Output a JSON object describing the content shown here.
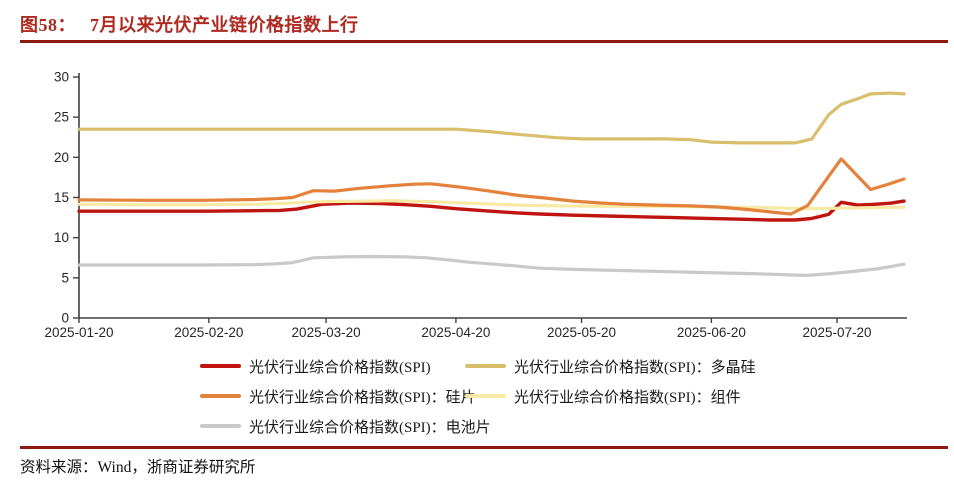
{
  "header": {
    "figure_label": "图58：",
    "title": "7月以来光伏产业链价格指数上行"
  },
  "source": {
    "text": "资料来源：Wind，浙商证券研究所"
  },
  "legend": {
    "items": [
      {
        "label": "光伏行业综合价格指数(SPI)",
        "key": "spi"
      },
      {
        "label": "光伏行业综合价格指数(SPI)：多晶硅",
        "key": "poly"
      },
      {
        "label": "光伏行业综合价格指数(SPI)：硅片",
        "key": "wafer"
      },
      {
        "label": "光伏行业综合价格指数(SPI)：组件",
        "key": "module"
      },
      {
        "label": "光伏行业综合价格指数(SPI)：电池片",
        "key": "cell"
      }
    ]
  },
  "colors": {
    "title_red": "#AE2A20",
    "rule_maroon": "#8C1A10",
    "axis": "#404040"
  },
  "chart_data": {
    "type": "line",
    "title": "",
    "xlabel": "",
    "ylabel": "",
    "grid": false,
    "legend_position": "bottom",
    "x_unit": "days since 2025-01-20",
    "x_domain": [
      0,
      197
    ],
    "ylim": [
      0,
      30
    ],
    "yticks": [
      0,
      5,
      10,
      15,
      20,
      25,
      30
    ],
    "axis_color": "#404040",
    "xticks": [
      {
        "day": 0,
        "label": "2025-01-20"
      },
      {
        "day": 31,
        "label": "2025-02-20"
      },
      {
        "day": 59,
        "label": "2025-03-20"
      },
      {
        "day": 90,
        "label": "2025-04-20"
      },
      {
        "day": 120,
        "label": "2025-05-20"
      },
      {
        "day": 151,
        "label": "2025-06-20"
      },
      {
        "day": 181,
        "label": "2025-07-20"
      }
    ],
    "series": [
      {
        "key": "cell",
        "name": "光伏行业综合价格指数(SPI)：电池片",
        "color": "#C9C9C9",
        "width": 3.2,
        "points": [
          [
            0,
            6.6
          ],
          [
            15,
            6.6
          ],
          [
            30,
            6.6
          ],
          [
            42,
            6.65
          ],
          [
            47,
            6.75
          ],
          [
            51,
            6.9
          ],
          [
            56,
            7.5
          ],
          [
            63,
            7.6
          ],
          [
            70,
            7.65
          ],
          [
            78,
            7.6
          ],
          [
            83,
            7.5
          ],
          [
            88,
            7.25
          ],
          [
            93,
            6.95
          ],
          [
            98,
            6.75
          ],
          [
            104,
            6.5
          ],
          [
            110,
            6.2
          ],
          [
            118,
            6.05
          ],
          [
            126,
            5.95
          ],
          [
            134,
            5.85
          ],
          [
            142,
            5.75
          ],
          [
            150,
            5.65
          ],
          [
            158,
            5.55
          ],
          [
            165,
            5.45
          ],
          [
            170,
            5.35
          ],
          [
            174,
            5.3
          ],
          [
            179,
            5.5
          ],
          [
            185,
            5.8
          ],
          [
            191,
            6.15
          ],
          [
            197,
            6.7
          ]
        ]
      },
      {
        "key": "poly",
        "name": "光伏行业综合价格指数(SPI)：多晶硅",
        "color": "#D9BF6C",
        "width": 3.2,
        "points": [
          [
            0,
            23.5
          ],
          [
            20,
            23.5
          ],
          [
            45,
            23.5
          ],
          [
            70,
            23.5
          ],
          [
            90,
            23.5
          ],
          [
            98,
            23.2
          ],
          [
            106,
            22.8
          ],
          [
            114,
            22.45
          ],
          [
            120,
            22.3
          ],
          [
            130,
            22.3
          ],
          [
            140,
            22.3
          ],
          [
            146,
            22.2
          ],
          [
            151,
            21.9
          ],
          [
            158,
            21.8
          ],
          [
            166,
            21.8
          ],
          [
            171,
            21.8
          ],
          [
            175,
            22.3
          ],
          [
            179,
            25.3
          ],
          [
            182,
            26.6
          ],
          [
            186,
            27.3
          ],
          [
            189,
            27.9
          ],
          [
            194,
            28.0
          ],
          [
            197,
            27.9
          ]
        ]
      },
      {
        "key": "spi",
        "name": "光伏行业综合价格指数(SPI)",
        "color": "#BF1410",
        "width": 3.4,
        "points": [
          [
            0,
            13.3
          ],
          [
            15,
            13.3
          ],
          [
            30,
            13.3
          ],
          [
            40,
            13.35
          ],
          [
            48,
            13.4
          ],
          [
            52,
            13.55
          ],
          [
            58,
            14.15
          ],
          [
            65,
            14.3
          ],
          [
            72,
            14.25
          ],
          [
            78,
            14.1
          ],
          [
            84,
            13.9
          ],
          [
            90,
            13.6
          ],
          [
            97,
            13.35
          ],
          [
            104,
            13.1
          ],
          [
            110,
            12.95
          ],
          [
            118,
            12.8
          ],
          [
            126,
            12.7
          ],
          [
            134,
            12.6
          ],
          [
            142,
            12.5
          ],
          [
            150,
            12.4
          ],
          [
            158,
            12.3
          ],
          [
            165,
            12.2
          ],
          [
            171,
            12.2
          ],
          [
            175,
            12.4
          ],
          [
            179,
            12.9
          ],
          [
            182,
            14.4
          ],
          [
            186,
            14.05
          ],
          [
            190,
            14.15
          ],
          [
            194,
            14.3
          ],
          [
            197,
            14.55
          ]
        ]
      },
      {
        "key": "module",
        "name": "光伏行业综合价格指数(SPI)：组件",
        "color": "#F8E9A5",
        "width": 3.2,
        "points": [
          [
            0,
            14.15
          ],
          [
            15,
            14.1
          ],
          [
            30,
            14.1
          ],
          [
            42,
            14.15
          ],
          [
            48,
            14.25
          ],
          [
            54,
            14.4
          ],
          [
            60,
            14.5
          ],
          [
            68,
            14.55
          ],
          [
            75,
            14.6
          ],
          [
            82,
            14.5
          ],
          [
            88,
            14.4
          ],
          [
            95,
            14.25
          ],
          [
            102,
            14.1
          ],
          [
            108,
            14.0
          ],
          [
            115,
            13.95
          ],
          [
            125,
            13.9
          ],
          [
            135,
            13.9
          ],
          [
            145,
            13.85
          ],
          [
            155,
            13.8
          ],
          [
            163,
            13.75
          ],
          [
            170,
            13.65
          ],
          [
            174,
            13.6
          ],
          [
            180,
            13.65
          ],
          [
            186,
            13.7
          ],
          [
            192,
            13.75
          ],
          [
            197,
            13.8
          ]
        ]
      },
      {
        "key": "wafer",
        "name": "光伏行业综合价格指数(SPI)：硅片",
        "color": "#E4813B",
        "width": 3.2,
        "points": [
          [
            0,
            14.7
          ],
          [
            15,
            14.65
          ],
          [
            30,
            14.65
          ],
          [
            42,
            14.75
          ],
          [
            47,
            14.85
          ],
          [
            51,
            15.0
          ],
          [
            56,
            15.85
          ],
          [
            61,
            15.8
          ],
          [
            67,
            16.15
          ],
          [
            74,
            16.45
          ],
          [
            80,
            16.65
          ],
          [
            84,
            16.7
          ],
          [
            91,
            16.3
          ],
          [
            98,
            15.8
          ],
          [
            105,
            15.25
          ],
          [
            111,
            14.95
          ],
          [
            118,
            14.55
          ],
          [
            125,
            14.3
          ],
          [
            131,
            14.15
          ],
          [
            138,
            14.05
          ],
          [
            146,
            13.95
          ],
          [
            153,
            13.8
          ],
          [
            160,
            13.5
          ],
          [
            166,
            13.15
          ],
          [
            170,
            12.95
          ],
          [
            174,
            14.0
          ],
          [
            182,
            19.8
          ],
          [
            189,
            16.0
          ],
          [
            193,
            16.6
          ],
          [
            197,
            17.3
          ]
        ]
      }
    ]
  }
}
